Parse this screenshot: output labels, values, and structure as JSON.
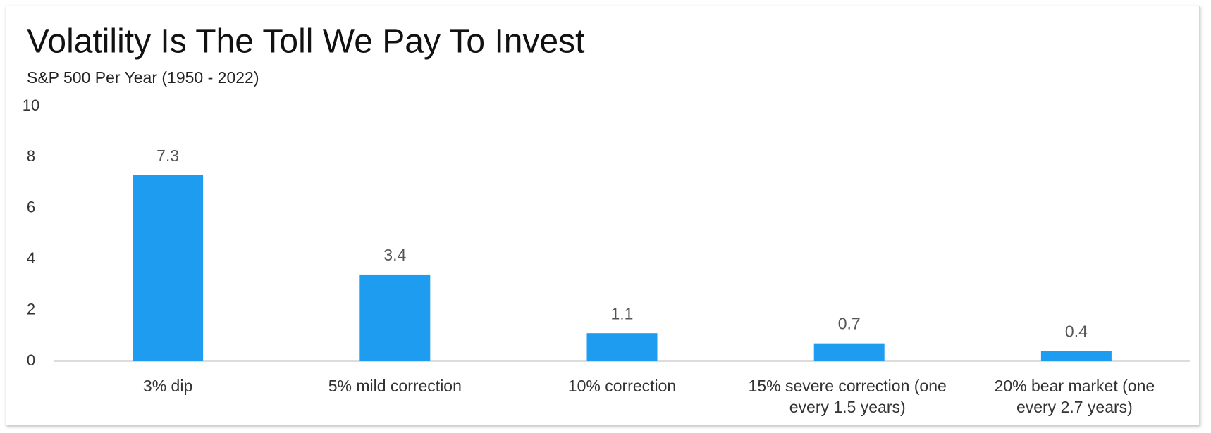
{
  "chart_data": {
    "type": "bar",
    "title": "Volatility Is The Toll We Pay To Invest",
    "subtitle": "S&P 500 Per Year (1950 - 2022)",
    "categories": [
      "3% dip",
      "5% mild correction",
      "10% correction",
      "15% severe correction (one every 1.5 years)",
      "20% bear market (one every 2.7 years)"
    ],
    "values": [
      7.3,
      3.4,
      1.1,
      0.7,
      0.4
    ],
    "color": "#1e9cf0",
    "ylim": [
      0,
      10
    ],
    "yticks": [
      0,
      2,
      4,
      6,
      8,
      10
    ],
    "grid": false
  }
}
